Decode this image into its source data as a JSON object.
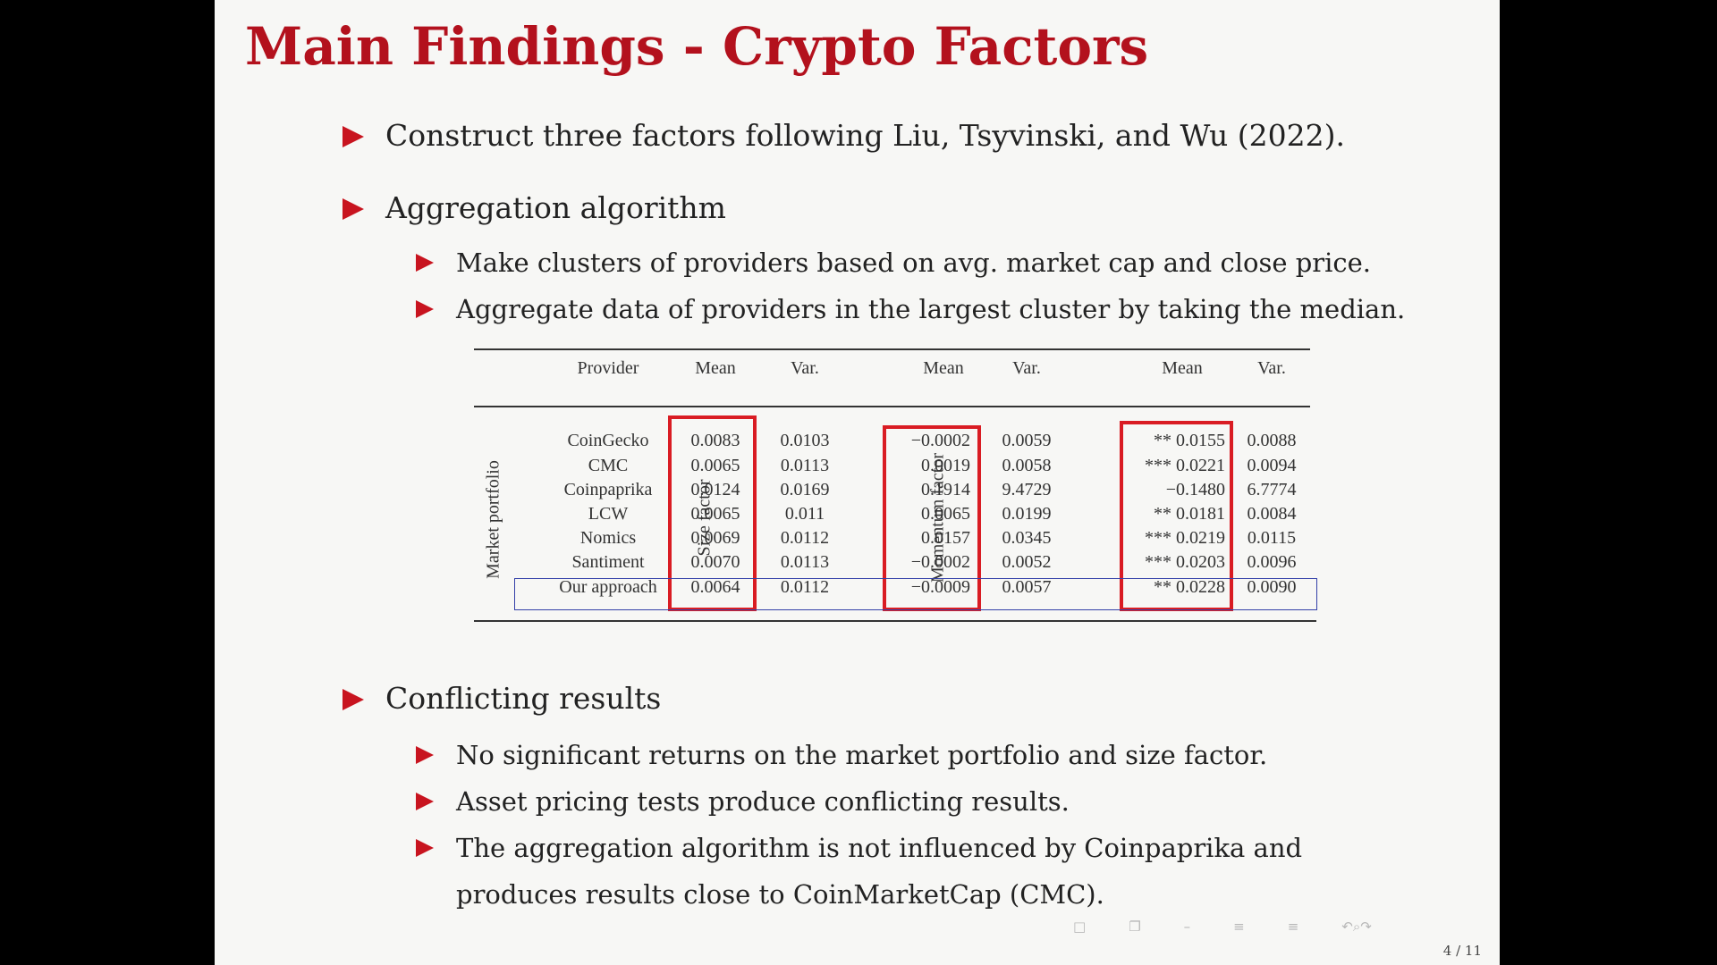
{
  "slide": {
    "title": "Main Findings - Crypto Factors",
    "bullet1": "Construct three factors following Liu, Tsyvinski, and Wu (2022).",
    "bullet2": "Aggregation algorithm",
    "bullet2_sub1": "Make clusters of providers based on avg. market cap and close price.",
    "bullet2_sub2": "Aggregate data of providers in the largest cluster by taking the median.",
    "bullet3": "Conflicting results",
    "bullet3_sub1": "No significant returns on the market portfolio and size factor.",
    "bullet3_sub2": "Asset pricing tests produce conflicting results.",
    "bullet3_sub3_line1": "The aggregation algorithm is not influenced by Coinpaprika and",
    "bullet3_sub3_line2": "produces results close to CoinMarketCap (CMC).",
    "page_number": "4 / 11",
    "accent_color": "#b3111d",
    "nav_icons": [
      "slide-nav-icon",
      "frame-nav-icon",
      "subsection-nav-icon",
      "section-nav-icon",
      "toc-nav-icon",
      "undo-redo-search-icon"
    ]
  },
  "table": {
    "headers": {
      "provider": "Provider",
      "mean1": "Mean",
      "var1": "Var.",
      "mean2": "Mean",
      "var2": "Var.",
      "mean3": "Mean",
      "var3": "Var."
    },
    "group_labels": {
      "market": "Market portfolio",
      "size": "Size factor",
      "momentum": "Momentum factor"
    },
    "rows": [
      {
        "provider": "CoinGecko",
        "mp_mean": "0.0083",
        "mp_var": "0.0103",
        "sf_mean": "−0.0002",
        "sf_var": "0.0059",
        "mom_mean": "** 0.0155",
        "mom_var": "0.0088"
      },
      {
        "provider": "CMC",
        "mp_mean": "0.0065",
        "mp_var": "0.0113",
        "sf_mean": "0.0019",
        "sf_var": "0.0058",
        "mom_mean": "*** 0.0221",
        "mom_var": "0.0094"
      },
      {
        "provider": "Coinpaprika",
        "mp_mean": "0.0124",
        "mp_var": "0.0169",
        "sf_mean": "0.1914",
        "sf_var": "9.4729",
        "mom_mean": "−0.1480",
        "mom_var": "6.7774"
      },
      {
        "provider": "LCW",
        "mp_mean": "0.0065",
        "mp_var": "0.011",
        "sf_mean": "0.0065",
        "sf_var": "0.0199",
        "mom_mean": "** 0.0181",
        "mom_var": "0.0084"
      },
      {
        "provider": "Nomics",
        "mp_mean": "0.0069",
        "mp_var": "0.0112",
        "sf_mean": "0.0157",
        "sf_var": "0.0345",
        "mom_mean": "*** 0.0219",
        "mom_var": "0.0115"
      },
      {
        "provider": "Santiment",
        "mp_mean": "0.0070",
        "mp_var": "0.0113",
        "sf_mean": "−0.0002",
        "sf_var": "0.0052",
        "mom_mean": "*** 0.0203",
        "mom_var": "0.0096"
      },
      {
        "provider": "Our approach",
        "mp_mean": "0.0064",
        "mp_var": "0.0112",
        "sf_mean": "−0.0009",
        "sf_var": "0.0057",
        "mom_mean": "** 0.0228",
        "mom_var": "0.0090"
      }
    ]
  }
}
